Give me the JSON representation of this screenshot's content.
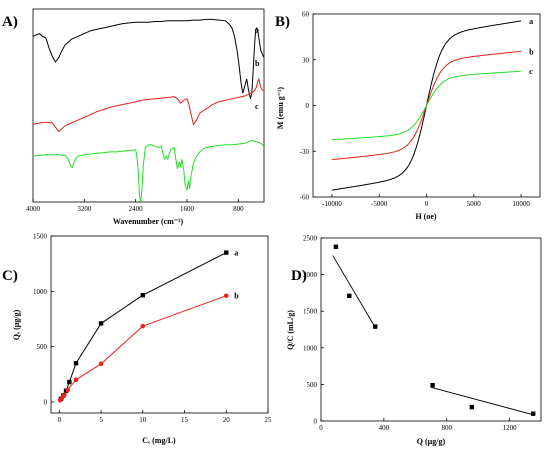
{
  "chart_data": [
    {
      "panel": "A)",
      "type": "line",
      "xlabel": "Wavenumber (cm⁻¹)",
      "ylabel": "",
      "xlim": [
        4000,
        400
      ],
      "xticks": [
        "4000",
        "3200",
        "2400",
        "1600",
        "800"
      ],
      "series": [
        {
          "name": "a",
          "color": "#000000",
          "x": [
            4000,
            3950,
            3900,
            3850,
            3800,
            3750,
            3700,
            3650,
            3600,
            3550,
            3500,
            3450,
            3400,
            3300,
            3200,
            3100,
            3000,
            2900,
            2800,
            2700,
            2600,
            2500,
            2400,
            2300,
            2200,
            2100,
            2000,
            1900,
            1800,
            1700,
            1600,
            1500,
            1400,
            1300,
            1200,
            1100,
            1000,
            950,
            900,
            860,
            820,
            790,
            760,
            730,
            700,
            670,
            640,
            610,
            590,
            570,
            550,
            530,
            510,
            490,
            470,
            450,
            430,
            400
          ],
          "y": [
            80,
            81,
            82,
            80,
            79,
            72,
            66,
            62,
            65,
            70,
            74,
            76,
            78,
            80,
            82,
            84,
            85,
            86,
            87,
            88,
            89,
            89.5,
            90,
            90,
            90,
            90.5,
            90.5,
            91,
            91,
            91,
            91,
            91.5,
            91.5,
            92,
            92,
            91.5,
            91,
            89,
            86,
            80,
            70,
            60,
            48,
            40,
            45,
            50,
            42,
            36,
            40,
            55,
            72,
            85,
            86,
            82,
            76,
            70,
            68,
            65
          ]
        },
        {
          "name": "b",
          "color": "#e8231b",
          "x": [
            4000,
            3900,
            3800,
            3700,
            3650,
            3600,
            3550,
            3500,
            3400,
            3300,
            3200,
            3100,
            3000,
            2900,
            2800,
            2700,
            2600,
            2500,
            2400,
            2300,
            2200,
            2100,
            2000,
            1900,
            1800,
            1750,
            1700,
            1650,
            1600,
            1570,
            1540,
            1500,
            1450,
            1400,
            1300,
            1200,
            1100,
            1000,
            900,
            800,
            700,
            650,
            600,
            560,
            520,
            500,
            480,
            460,
            440,
            420,
            400
          ],
          "y": [
            30,
            31,
            31.5,
            31,
            28,
            25,
            27,
            29,
            31,
            33,
            35,
            37,
            39,
            40.5,
            42,
            43,
            44,
            45,
            46,
            47,
            47.5,
            48,
            48.5,
            49,
            49.5,
            48,
            45,
            47,
            48,
            44,
            38,
            30,
            33,
            38,
            41,
            44,
            46,
            47,
            48,
            49,
            50,
            51,
            52,
            53,
            56,
            60,
            62,
            58,
            55,
            54,
            54
          ]
        },
        {
          "name": "c",
          "color": "#22e022",
          "x": [
            4000,
            3900,
            3800,
            3700,
            3600,
            3500,
            3450,
            3420,
            3390,
            3350,
            3300,
            3200,
            3100,
            3000,
            2900,
            2800,
            2700,
            2600,
            2500,
            2450,
            2400,
            2380,
            2360,
            2340,
            2320,
            2300,
            2280,
            2250,
            2200,
            2150,
            2100,
            2050,
            2000,
            1980,
            1950,
            1920,
            1900,
            1880,
            1850,
            1800,
            1780,
            1750,
            1720,
            1700,
            1680,
            1650,
            1630,
            1600,
            1580,
            1560,
            1540,
            1500,
            1450,
            1400,
            1350,
            1300,
            1200,
            1100,
            1000,
            900,
            800,
            700,
            650,
            600,
            550,
            500,
            450,
            400
          ],
          "y": [
            14,
            14.5,
            15,
            15,
            15,
            14.5,
            12,
            8,
            6,
            11,
            14,
            15,
            15.5,
            16,
            16.5,
            17,
            17,
            17.5,
            18,
            18,
            18.5,
            14,
            4,
            -14,
            -18,
            -8,
            8,
            20,
            22,
            22,
            21,
            20,
            21,
            17,
            12,
            14,
            12,
            15,
            19,
            20,
            14,
            5,
            10,
            6,
            12,
            4,
            -6,
            -10,
            -3,
            -9,
            -1,
            9,
            14,
            17,
            19,
            20,
            21,
            21.5,
            22,
            22,
            22.5,
            23,
            24,
            25,
            24.5,
            24,
            23,
            21
          ]
        }
      ]
    },
    {
      "panel": "B)",
      "type": "line",
      "xlabel": "H (oe)",
      "ylabel": "M (emu g⁻¹)",
      "xlim": [
        -12000,
        12000
      ],
      "ylim": [
        -60,
        60
      ],
      "xticks": [
        -10000,
        -5000,
        0,
        5000,
        10000
      ],
      "yticks": [
        -60,
        -30,
        0,
        30,
        60
      ],
      "series": [
        {
          "name": "a",
          "color": "#000000",
          "Ms": 55.5
        },
        {
          "name": "b",
          "color": "#e8231b",
          "Ms": 35.5
        },
        {
          "name": "c",
          "color": "#22e022",
          "Ms": 22.5
        }
      ]
    },
    {
      "panel": "C)",
      "type": "line",
      "xlabel": "Cₑ (mg/L)",
      "ylabel": "Qₑ (µg/g)",
      "xlim": [
        -1,
        25
      ],
      "ylim": [
        -100,
        1500
      ],
      "xticks": [
        0,
        5,
        10,
        15,
        20,
        25
      ],
      "yticks": [
        0,
        500,
        1000,
        1500
      ],
      "series": [
        {
          "name": "a",
          "color": "#000000",
          "marker": "square",
          "x": [
            0.2,
            0.5,
            0.8,
            1.2,
            2.0,
            5.0,
            10.0,
            20.0
          ],
          "y": [
            28,
            60,
            100,
            180,
            350,
            710,
            965,
            1350
          ]
        },
        {
          "name": "b",
          "color": "#e8231b",
          "marker": "circle",
          "x": [
            0.1,
            0.3,
            0.6,
            1.0,
            2.0,
            5.0,
            10.0,
            20.0
          ],
          "y": [
            15,
            35,
            65,
            110,
            200,
            345,
            685,
            960
          ]
        }
      ]
    },
    {
      "panel": "D)",
      "type": "scatter",
      "xlabel": "Q (µg/g)",
      "ylabel": "Q/C (mL/g)",
      "xlim": [
        0,
        1400
      ],
      "ylim": [
        0,
        2500
      ],
      "xticks": [
        0,
        400,
        800,
        1200
      ],
      "yticks": [
        0,
        500,
        1000,
        1500,
        2000,
        2500
      ],
      "points": {
        "x": [
          95,
          180,
          345,
          710,
          960,
          1350
        ],
        "y": [
          2380,
          1710,
          1290,
          490,
          190,
          100
        ]
      },
      "fit_lines": [
        {
          "x": [
            75,
            350
          ],
          "y": [
            2260,
            1260
          ]
        },
        {
          "x": [
            700,
            1360
          ],
          "y": [
            460,
            80
          ]
        }
      ]
    }
  ]
}
